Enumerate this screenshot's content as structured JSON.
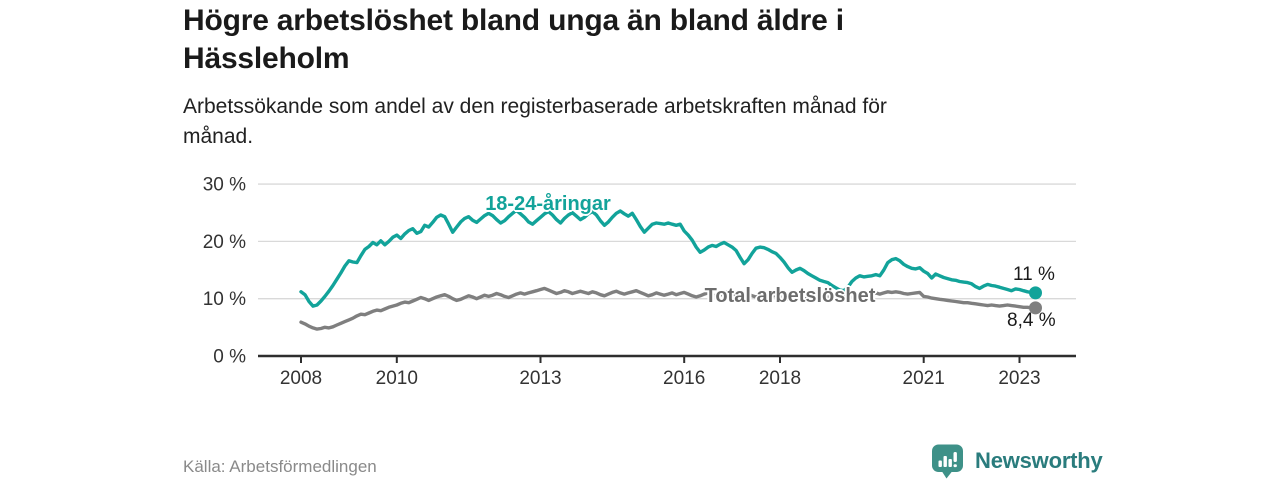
{
  "title": {
    "line1": "Högre arbetslöshet bland unga än bland äldre i",
    "line2": "Hässleholm"
  },
  "subtitle": {
    "line1": "Arbetssökande som andel av den registerbaserade arbetskraften månad för",
    "line2": "månad."
  },
  "source": "Källa: Arbetsförmedlingen",
  "logo": {
    "text": "Newsworthy"
  },
  "colors": {
    "young_line": "#12a39a",
    "total_line": "#7f7f7f",
    "total_label": "#6d6d6d",
    "axis": "#2e2e2e",
    "gridline": "#d9d9d9",
    "tick_text": "#333333",
    "logo_icon": "#3e9188",
    "logo_text": "#2a7c7d"
  },
  "chart_data": {
    "type": "line",
    "title": "Högre arbetslöshet bland unga än bland äldre i Hässleholm",
    "subtitle": "Arbetssökande som andel av den registerbaserade arbetskraften månad för månad.",
    "x_unit": "year-month",
    "x_start_year": 2008,
    "x_step_months": 1,
    "ylim": [
      0,
      30
    ],
    "grid": "horizontal",
    "legend_position": "inline-labels",
    "y_ticks": [
      {
        "value": 0,
        "label": "0 %"
      },
      {
        "value": 10,
        "label": "10 %"
      },
      {
        "value": 20,
        "label": "20 %"
      },
      {
        "value": 30,
        "label": "30 %"
      }
    ],
    "x_ticks": [
      {
        "value": 2008,
        "label": "2008"
      },
      {
        "value": 2010,
        "label": "2010"
      },
      {
        "value": 2013,
        "label": "2013"
      },
      {
        "value": 2016,
        "label": "2016"
      },
      {
        "value": 2018,
        "label": "2018"
      },
      {
        "value": 2021,
        "label": "2021"
      },
      {
        "value": 2023,
        "label": "2023"
      }
    ],
    "series": [
      {
        "id": "young",
        "name": "18-24-åringar",
        "color": "#12a39a",
        "end_label": "11 %",
        "end_value": 11.0,
        "values": [
          11.2,
          10.7,
          9.5,
          8.7,
          8.9,
          9.6,
          10.4,
          11.3,
          12.3,
          13.4,
          14.5,
          15.7,
          16.6,
          16.4,
          16.3,
          17.5,
          18.6,
          19.1,
          19.8,
          19.4,
          20.1,
          19.4,
          20.0,
          20.7,
          21.1,
          20.5,
          21.3,
          21.9,
          22.2,
          21.4,
          21.7,
          22.8,
          22.5,
          23.3,
          24.2,
          24.6,
          24.3,
          23.0,
          21.6,
          22.5,
          23.4,
          24.0,
          24.3,
          23.7,
          23.3,
          23.9,
          24.5,
          24.9,
          24.5,
          23.8,
          23.2,
          23.6,
          24.3,
          24.9,
          25.4,
          24.8,
          24.2,
          23.4,
          23.0,
          23.6,
          24.2,
          24.8,
          25.2,
          24.6,
          23.8,
          23.2,
          24.0,
          24.6,
          25.0,
          24.4,
          23.8,
          24.2,
          24.8,
          25.2,
          24.6,
          23.6,
          22.8,
          23.4,
          24.2,
          24.9,
          25.3,
          24.8,
          24.4,
          24.9,
          23.8,
          22.6,
          21.6,
          22.3,
          23.0,
          23.2,
          23.1,
          23.0,
          23.2,
          23.0,
          22.8,
          23.0,
          21.8,
          21.1,
          20.2,
          19.0,
          18.1,
          18.5,
          19.0,
          19.3,
          19.1,
          19.5,
          19.8,
          19.4,
          19.0,
          18.4,
          17.2,
          16.1,
          16.8,
          17.9,
          18.8,
          19.0,
          18.9,
          18.6,
          18.2,
          17.9,
          17.2,
          16.4,
          15.4,
          14.6,
          15.0,
          15.3,
          14.9,
          14.4,
          14.0,
          13.6,
          13.2,
          13.0,
          12.8,
          12.3,
          11.9,
          11.5,
          11.4,
          12.0,
          13.0,
          13.6,
          14.0,
          13.8,
          13.9,
          14.0,
          14.2,
          14.0,
          15.0,
          16.3,
          16.8,
          17.0,
          16.6,
          16.0,
          15.6,
          15.3,
          15.2,
          15.4,
          14.8,
          14.4,
          13.6,
          14.3,
          14.0,
          13.7,
          13.5,
          13.3,
          13.2,
          13.0,
          12.9,
          12.8,
          12.6,
          12.1,
          11.8,
          12.2,
          12.5,
          12.3,
          12.2,
          12.0,
          11.8,
          11.6,
          11.4,
          11.7,
          11.6,
          11.4,
          11.2,
          11.1,
          11.0
        ]
      },
      {
        "id": "total",
        "name": "Total arbetslöshet",
        "color": "#7f7f7f",
        "end_label": "8,4 %",
        "end_value": 8.4,
        "values": [
          5.9,
          5.6,
          5.2,
          4.9,
          4.7,
          4.8,
          5.0,
          4.9,
          5.1,
          5.4,
          5.7,
          6.0,
          6.3,
          6.6,
          7.0,
          7.3,
          7.2,
          7.5,
          7.8,
          8.0,
          7.9,
          8.2,
          8.5,
          8.7,
          8.9,
          9.2,
          9.4,
          9.3,
          9.6,
          9.9,
          10.2,
          10.0,
          9.7,
          10.0,
          10.3,
          10.5,
          10.7,
          10.4,
          10.0,
          9.7,
          9.9,
          10.2,
          10.5,
          10.3,
          10.0,
          10.3,
          10.6,
          10.4,
          10.6,
          10.9,
          10.7,
          10.4,
          10.2,
          10.5,
          10.8,
          11.0,
          10.8,
          11.0,
          11.2,
          11.4,
          11.6,
          11.8,
          11.5,
          11.2,
          10.9,
          11.1,
          11.4,
          11.2,
          10.9,
          11.1,
          11.3,
          11.1,
          10.9,
          11.2,
          11.0,
          10.7,
          10.5,
          10.8,
          11.1,
          11.3,
          11.0,
          10.8,
          11.0,
          11.2,
          11.4,
          11.1,
          10.8,
          10.5,
          10.7,
          11.0,
          10.8,
          10.6,
          10.8,
          11.0,
          10.7,
          10.9,
          11.1,
          10.8,
          10.5,
          10.3,
          10.5,
          10.8,
          11.0,
          10.7,
          10.4,
          10.6,
          10.9,
          11.2,
          10.9,
          10.6,
          10.4,
          10.6,
          10.8,
          10.5,
          10.3,
          10.5,
          10.8,
          10.6,
          10.4,
          10.6,
          10.4,
          10.1,
          9.9,
          10.1,
          10.3,
          10.1,
          9.9,
          10.1,
          10.3,
          10.1,
          9.9,
          10.1,
          10.3,
          10.1,
          9.9,
          10.1,
          10.3,
          10.5,
          10.3,
          10.5,
          10.7,
          10.5,
          10.7,
          10.9,
          11.0,
          10.8,
          11.0,
          11.2,
          11.1,
          11.2,
          11.1,
          10.9,
          10.8,
          10.9,
          11.0,
          11.1,
          10.4,
          10.3,
          10.1,
          10.0,
          9.9,
          9.8,
          9.7,
          9.6,
          9.5,
          9.4,
          9.3,
          9.3,
          9.2,
          9.1,
          9.0,
          8.9,
          8.8,
          8.9,
          8.8,
          8.7,
          8.8,
          8.9,
          8.8,
          8.7,
          8.6,
          8.5,
          8.5,
          8.4,
          8.4
        ]
      }
    ]
  }
}
